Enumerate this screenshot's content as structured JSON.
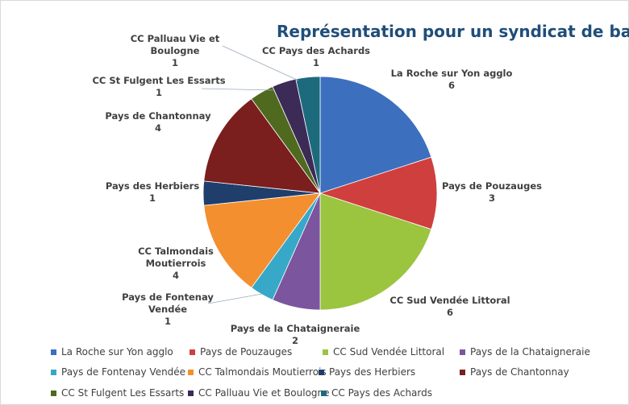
{
  "chart_data": {
    "type": "pie",
    "title": "Représentation pour un syndicat de bassin",
    "categories": [
      "La Roche sur Yon agglo",
      "Pays de Pouzauges",
      "CC Sud Vendée Littoral",
      "Pays de la Chataigneraie",
      "Pays de Fontenay Vendée",
      "CC Talmondais Moutierrois",
      "Pays des Herbiers",
      "Pays de Chantonnay",
      "CC St Fulgent Les Essarts",
      "CC Palluau Vie et Boulogne",
      "CC Pays des Achards"
    ],
    "values": [
      6,
      3,
      6,
      2,
      1,
      4,
      1,
      4,
      1,
      1,
      1
    ],
    "colors": [
      "#3d6fbf",
      "#cf3f3d",
      "#9bc43f",
      "#7c559f",
      "#37a8c8",
      "#f38f2e",
      "#1f3e6b",
      "#7a1e1e",
      "#4f6a1e",
      "#3c2a57",
      "#1e6a7d"
    ]
  }
}
